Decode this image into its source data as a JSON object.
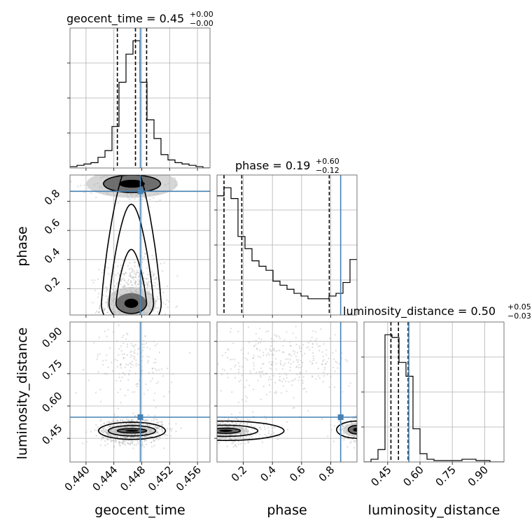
{
  "chart_data": {
    "type": "corner",
    "parameters": [
      "geocent_time",
      "phase",
      "luminosity_distance"
    ],
    "truths": {
      "geocent_time": 0.4478,
      "phase": 0.868,
      "luminosity_distance": 0.548
    },
    "colors": {
      "truth": "#4682b4",
      "hist": "#000000",
      "grid": "#b0b0b0",
      "points": "#9a9a9a"
    },
    "titles": {
      "geocent_time": {
        "main": "geocent_time = 0.45",
        "plus": "+0.00",
        "minus": "−0.00"
      },
      "phase": {
        "main": "phase = 0.19",
        "plus": "+0.60",
        "minus": "−0.12"
      },
      "luminosity_distance": {
        "main": "luminosity_distance = 0.50",
        "plus": "+0.05",
        "minus": "−0.03"
      }
    },
    "axis_labels": {
      "x": [
        "geocent_time",
        "phase",
        "luminosity_distance"
      ],
      "y": [
        "phase",
        "luminosity_distance"
      ]
    },
    "ranges": {
      "geocent_time": [
        0.4377,
        0.4578
      ],
      "phase": [
        0.02,
        0.98
      ],
      "luminosity_distance": [
        0.34,
        0.99
      ]
    },
    "ticks": {
      "geocent_time": [
        {
          "value": 0.44,
          "label": "0.440"
        },
        {
          "value": 0.444,
          "label": "0.444"
        },
        {
          "value": 0.448,
          "label": "0.448"
        },
        {
          "value": 0.452,
          "label": "0.452"
        },
        {
          "value": 0.456,
          "label": "0.456"
        }
      ],
      "phase": [
        {
          "value": 0.2,
          "label": "0.2"
        },
        {
          "value": 0.4,
          "label": "0.4"
        },
        {
          "value": 0.6,
          "label": "0.6"
        },
        {
          "value": 0.8,
          "label": "0.8"
        }
      ],
      "luminosity_distance": [
        {
          "value": 0.45,
          "label": "0.45"
        },
        {
          "value": 0.6,
          "label": "0.60"
        },
        {
          "value": 0.75,
          "label": "0.75"
        },
        {
          "value": 0.9,
          "label": "0.90"
        }
      ]
    },
    "quantiles": {
      "geocent_time": [
        0.4445,
        0.4471,
        0.4487
      ],
      "phase": [
        0.068,
        0.19,
        0.79
      ],
      "luminosity_distance": [
        0.465,
        0.5,
        0.545
      ]
    },
    "histograms": {
      "geocent_time": {
        "edges_range": [
          0.4377,
          0.4578
        ],
        "bins": 20,
        "counts": [
          1,
          2,
          3,
          4,
          8,
          13,
          31,
          64,
          85,
          95,
          64,
          36,
          22,
          10,
          6,
          4,
          3,
          2,
          1,
          0
        ]
      },
      "phase": {
        "edges_range": [
          0.02,
          0.98
        ],
        "bins": 20,
        "counts": [
          88,
          94,
          86,
          58,
          49,
          40,
          36,
          33,
          25,
          22,
          19,
          16,
          14,
          12,
          12,
          12,
          14,
          16,
          24,
          41
        ]
      },
      "luminosity_distance": {
        "edges_range": [
          0.34,
          0.99
        ],
        "bins": 20,
        "counts": [
          0,
          2,
          9,
          92,
          90,
          72,
          62,
          24,
          6,
          2,
          1,
          1,
          1,
          1,
          2,
          2,
          1,
          1,
          0,
          0
        ]
      }
    },
    "blobs": [
      {
        "pair": [
          "geocent_time",
          "phase"
        ],
        "center": [
          0.4465,
          0.1
        ],
        "sigma": [
          0.0022,
          0.14
        ],
        "weight": 0.75,
        "contours": [
          [
            0.0022,
            0.07,
            0.45,
            0.3
          ],
          [
            0.0032,
            0.13,
            0.9,
            0.55
          ],
          [
            0.0043,
            0.2,
            1.25,
            0.78
          ]
        ]
      },
      {
        "pair": [
          "geocent_time",
          "phase"
        ],
        "center": [
          0.4466,
          0.92
        ],
        "sigma": [
          0.0028,
          0.06
        ],
        "weight": 0.25,
        "contours": [
          [
            0.0041,
            0.06,
            0,
            0
          ]
        ]
      },
      {
        "pair": [
          "geocent_time",
          "luminosity_distance"
        ],
        "center": [
          0.4466,
          0.485
        ],
        "sigma": [
          0.0022,
          0.028
        ],
        "weight": 0.85,
        "contours": [
          [
            0.0021,
            0.01,
            0,
            0
          ],
          [
            0.0034,
            0.024,
            0,
            0
          ],
          [
            0.0048,
            0.04,
            0,
            0
          ]
        ]
      },
      {
        "pair": [
          "geocent_time",
          "luminosity_distance"
        ],
        "center": [
          0.4466,
          0.8
        ],
        "sigma": [
          0.003,
          0.08
        ],
        "weight": 0.15,
        "contours": []
      },
      {
        "pair": [
          "phase",
          "luminosity_distance"
        ],
        "center": [
          0.08,
          0.485
        ],
        "sigma": [
          0.14,
          0.03
        ],
        "weight": 0.5,
        "contours": [
          [
            0.1,
            0.012,
            0,
            0
          ],
          [
            0.22,
            0.026,
            0,
            0
          ],
          [
            0.4,
            0.045,
            0,
            0
          ]
        ]
      },
      {
        "pair": [
          "phase",
          "luminosity_distance"
        ],
        "center": [
          0.98,
          0.49
        ],
        "sigma": [
          0.08,
          0.03
        ],
        "weight": 0.2,
        "contours": [
          [
            0.06,
            0.02,
            0,
            0
          ],
          [
            0.14,
            0.04,
            0,
            0
          ]
        ]
      },
      {
        "pair": [
          "phase",
          "luminosity_distance"
        ],
        "center": [
          0.45,
          0.8
        ],
        "sigma": [
          0.25,
          0.08
        ],
        "weight": 0.3,
        "contours": []
      }
    ]
  }
}
